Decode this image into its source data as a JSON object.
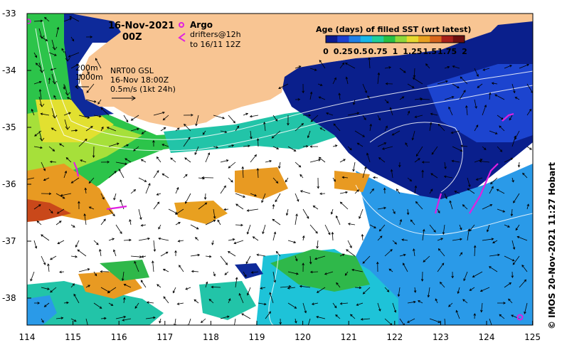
{
  "map": {
    "date_line1": "16-Nov-2021",
    "date_line2": "00Z",
    "argo_label": "Argo",
    "drifters_line1": "drifters@12h",
    "drifters_line2": "to 16/11 12Z",
    "depth_label_1": "200m",
    "depth_label_2": "1000m",
    "model_line1": "NRT00 GSL",
    "model_line2": "16-Nov 18:00Z",
    "scale_label": "0.5m/s (1kt 24h)",
    "colorbar_title": "Age (days) of filled SST (wrt latest)",
    "colorbar_ticks": [
      "0",
      "0.25",
      "0.5",
      "0.75",
      "1",
      "1.25",
      "1.5",
      "1.75",
      "2"
    ],
    "colorbar_colors": [
      "#0b1a8f",
      "#1b3fd0",
      "#1e7fe6",
      "#18b7e8",
      "#1fcf9b",
      "#27c044",
      "#8ed83a",
      "#e6d92f",
      "#e8a020",
      "#d8661c",
      "#a9201a",
      "#6e1010"
    ],
    "y_ticks": [
      "-33",
      "-34",
      "-35",
      "-36",
      "-37",
      "-38"
    ],
    "x_ticks": [
      "114",
      "115",
      "116",
      "117",
      "118",
      "119",
      "120",
      "121",
      "122",
      "123",
      "124",
      "125"
    ],
    "credit": "© IMOS 20-Nov-2021 11:27 Hobart",
    "land_color": "#f8c593",
    "argo_color": "#e020e0"
  }
}
